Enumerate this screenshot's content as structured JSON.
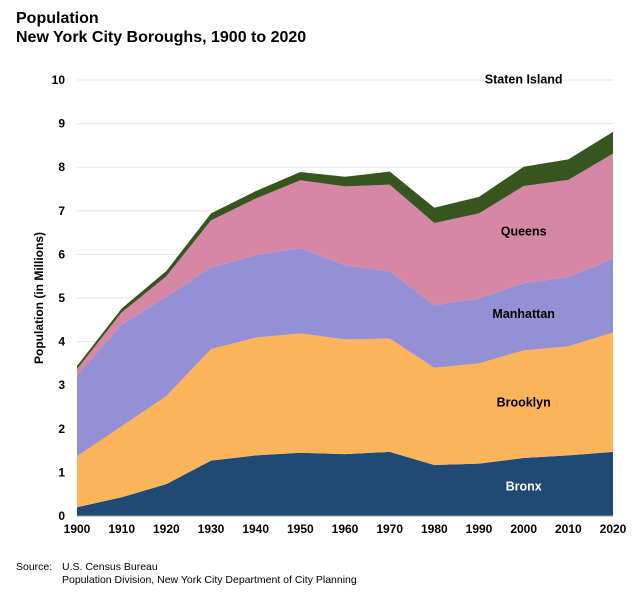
{
  "title": {
    "line1": "Population",
    "line2": "New York City Boroughs, 1900 to 2020"
  },
  "source": {
    "label": "Source:",
    "line1": "U.S. Census Bureau",
    "line2": "Population Division, New York City Department of City Planning"
  },
  "chart_data": {
    "type": "area",
    "stacked": true,
    "title": "Population New York City Boroughs, 1900 to 2020",
    "xlabel": "",
    "ylabel": "Population (in Millions)",
    "ylim": [
      0,
      10
    ],
    "yticks": [
      "0",
      "1",
      "2",
      "3",
      "4",
      "5",
      "6",
      "7",
      "8",
      "9",
      "10"
    ],
    "categories": [
      "1900",
      "1910",
      "1920",
      "1930",
      "1940",
      "1950",
      "1960",
      "1970",
      "1980",
      "1990",
      "2000",
      "2010",
      "2020"
    ],
    "grid": true,
    "series": [
      {
        "name": "Bronx",
        "color": "#1f4a73",
        "label_color": "#ffffff",
        "values": [
          0.2,
          0.43,
          0.73,
          1.27,
          1.39,
          1.45,
          1.42,
          1.47,
          1.17,
          1.2,
          1.33,
          1.39,
          1.47
        ]
      },
      {
        "name": "Brooklyn",
        "color": "#fbb45a",
        "label_color": "#000000",
        "values": [
          1.17,
          1.63,
          2.02,
          2.56,
          2.7,
          2.74,
          2.63,
          2.6,
          2.23,
          2.3,
          2.47,
          2.5,
          2.74
        ]
      },
      {
        "name": "Manhattan",
        "color": "#958fd3",
        "label_color": "#000000",
        "values": [
          1.85,
          2.33,
          2.28,
          1.87,
          1.89,
          1.96,
          1.7,
          1.54,
          1.43,
          1.49,
          1.54,
          1.59,
          1.69
        ]
      },
      {
        "name": "Queens",
        "color": "#d587a3",
        "label_color": "#000000",
        "values": [
          0.15,
          0.28,
          0.47,
          1.08,
          1.3,
          1.55,
          1.81,
          1.99,
          1.89,
          1.95,
          2.23,
          2.23,
          2.41
        ]
      },
      {
        "name": "Staten Island",
        "color": "#37561f",
        "label_color": "#000000",
        "values": [
          0.07,
          0.09,
          0.12,
          0.16,
          0.17,
          0.19,
          0.22,
          0.3,
          0.35,
          0.38,
          0.44,
          0.47,
          0.5
        ]
      }
    ]
  }
}
